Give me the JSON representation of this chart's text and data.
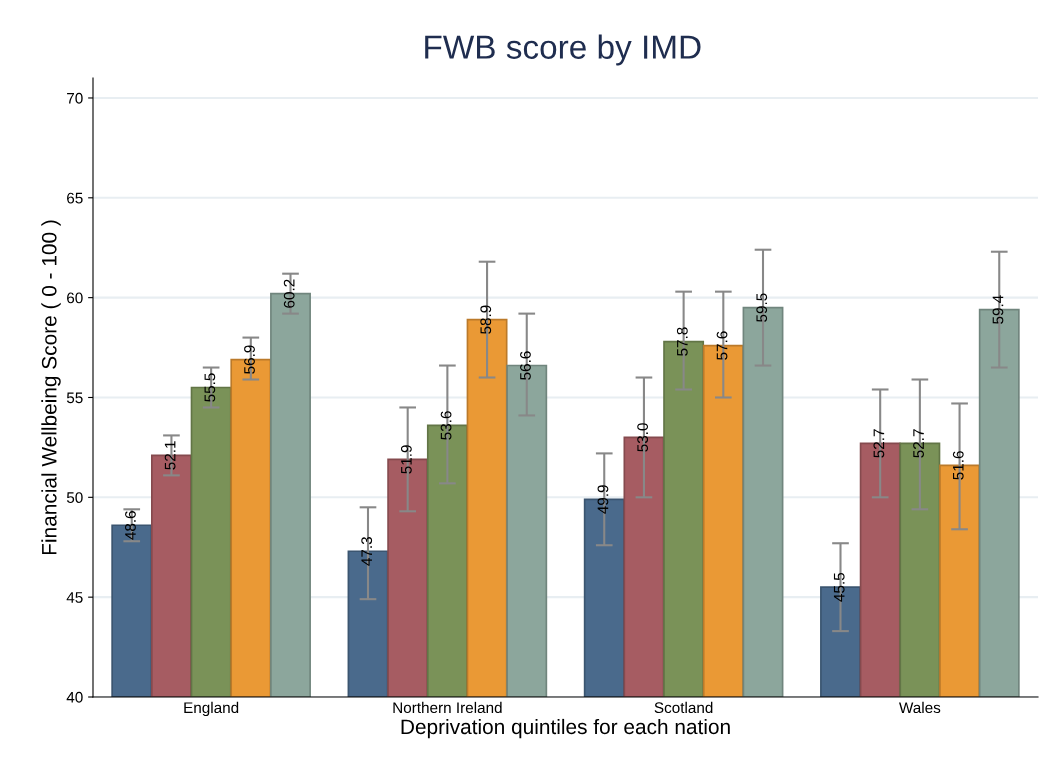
{
  "chart_data": {
    "type": "bar",
    "title": "FWB score by IMD",
    "xlabel": "Deprivation quintiles for each nation",
    "ylabel": "Financial Wellbeing Score ( 0 - 100 )",
    "categories": [
      "England",
      "Northern Ireland",
      "Scotland",
      "Wales"
    ],
    "series": [
      {
        "color": "#4a6a8c",
        "values": [
          48.6,
          47.3,
          49.9,
          45.5
        ],
        "value_labels": [
          "48.6",
          "47.3",
          "49.9",
          "45.5"
        ],
        "errors": [
          [
            47.8,
            49.4
          ],
          [
            44.9,
            49.5
          ],
          [
            47.6,
            52.2
          ],
          [
            43.3,
            47.7
          ]
        ]
      },
      {
        "color": "#a65c62",
        "values": [
          52.1,
          51.9,
          53.0,
          52.7
        ],
        "value_labels": [
          "52.1",
          "51.9",
          "53.0",
          "52.7"
        ],
        "errors": [
          [
            51.1,
            53.1
          ],
          [
            49.3,
            54.5
          ],
          [
            50.0,
            56.0
          ],
          [
            50.0,
            55.4
          ]
        ]
      },
      {
        "color": "#7a9258",
        "values": [
          55.5,
          53.6,
          57.8,
          52.7
        ],
        "value_labels": [
          "55.5",
          "53.6",
          "57.8",
          "52.7"
        ],
        "errors": [
          [
            54.5,
            56.5
          ],
          [
            50.7,
            56.6
          ],
          [
            55.4,
            60.3
          ],
          [
            49.4,
            55.9
          ]
        ]
      },
      {
        "color": "#ea9935",
        "values": [
          56.9,
          58.9,
          57.6,
          51.6
        ],
        "value_labels": [
          "56.9",
          "58.9",
          "57.6",
          "51.6"
        ],
        "errors": [
          [
            55.9,
            58.0
          ],
          [
            56.0,
            61.8
          ],
          [
            55.0,
            60.3
          ],
          [
            48.4,
            54.7
          ]
        ]
      },
      {
        "color": "#8ca69c",
        "values": [
          60.2,
          56.6,
          59.5,
          59.4
        ],
        "value_labels": [
          "60.2",
          "56.6",
          "59.5",
          "59.4"
        ],
        "errors": [
          [
            59.2,
            61.2
          ],
          [
            54.1,
            59.2
          ],
          [
            56.6,
            62.4
          ],
          [
            56.5,
            62.3
          ]
        ]
      }
    ],
    "ylim": [
      40,
      71
    ],
    "yticks": [
      40,
      45,
      50,
      55,
      60,
      65,
      70
    ],
    "grid": "y",
    "legend": false
  }
}
